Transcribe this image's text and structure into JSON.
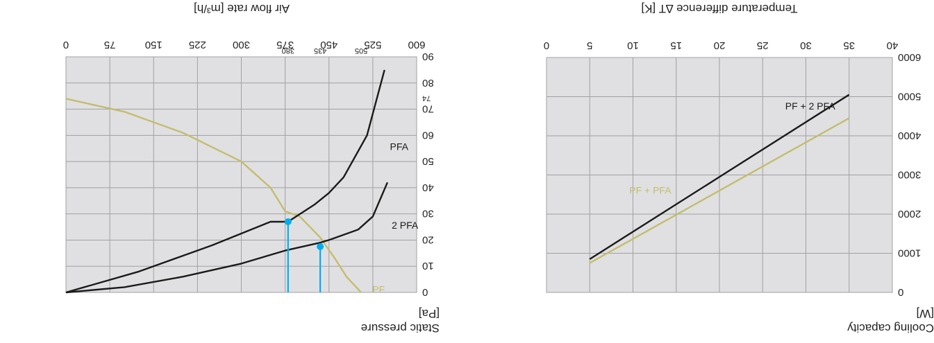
{
  "colors": {
    "plot_bg": "#e0e0e2",
    "grid": "#a0a0a4",
    "black_curve": "#1a1a1a",
    "olive_curve": "#c2bd6e",
    "marker": "#00aeef"
  },
  "chart_data": [
    {
      "type": "line",
      "title": "",
      "xlabel": "Temperature difference ∆T [K]",
      "ylabel": "Cooling capacity [W]",
      "ylabel_lines": [
        "Cooling capacity",
        "[W]"
      ],
      "xlim": [
        0,
        40
      ],
      "ylim": [
        0,
        6000
      ],
      "x_ticks": [
        "0",
        "5",
        "10",
        "15",
        "20",
        "25",
        "30",
        "35",
        "40"
      ],
      "y_ticks": [
        "0",
        "1000",
        "2000",
        "3000",
        "4000",
        "5000",
        "6000"
      ],
      "grid": true,
      "series": [
        {
          "name": "PF + PFA",
          "color": "olive",
          "x": [
            5,
            35
          ],
          "y": [
            750,
            4450
          ]
        },
        {
          "name": "PF + 2 PFA",
          "color": "black",
          "x": [
            5,
            35
          ],
          "y": [
            850,
            5050
          ]
        }
      ]
    },
    {
      "type": "line",
      "title": "",
      "xlabel": "Air flow rate [m³/h]",
      "ylabel": "Static pressure [Pa]",
      "ylabel_lines": [
        "Static pressure",
        "[Pa]"
      ],
      "xlim": [
        0,
        600
      ],
      "ylim": [
        0,
        90
      ],
      "x_ticks": [
        "0",
        "75",
        "150",
        "225",
        "300",
        "375",
        "450",
        "525",
        "600"
      ],
      "y_ticks": [
        "0",
        "10",
        "20",
        "30",
        "40",
        "50",
        "60",
        "70",
        "80",
        "90"
      ],
      "grid": true,
      "series": [
        {
          "name": "PF",
          "color": "olive",
          "x": [
            0,
            100,
            200,
            300,
            350,
            375,
            400,
            435,
            460,
            480,
            505
          ],
          "y": [
            74,
            69,
            61,
            50,
            40,
            31,
            29,
            21,
            13,
            6,
            0
          ]
        },
        {
          "name": "PFA",
          "color": "black",
          "x": [
            0,
            125,
            200,
            250,
            300,
            350,
            380,
            425,
            450,
            475,
            515,
            545
          ],
          "y": [
            0,
            8,
            14,
            18,
            22.5,
            27,
            27,
            33.5,
            38,
            44,
            60,
            85
          ]
        },
        {
          "name": "2 PFA",
          "color": "black",
          "x": [
            0,
            100,
            200,
            300,
            375,
            435,
            450,
            500,
            525,
            550
          ],
          "y": [
            0,
            2,
            6,
            11,
            16,
            19,
            20,
            24,
            29,
            42
          ]
        }
      ],
      "operating_points": [
        {
          "x": 380,
          "y": 27,
          "label": "380"
        },
        {
          "x": 435,
          "y": 17.5,
          "label": "435"
        }
      ],
      "annotation_ticks": [
        {
          "axis": "x",
          "value": 505,
          "label": "505"
        },
        {
          "axis": "y",
          "value": 74,
          "label": "74"
        }
      ]
    }
  ]
}
